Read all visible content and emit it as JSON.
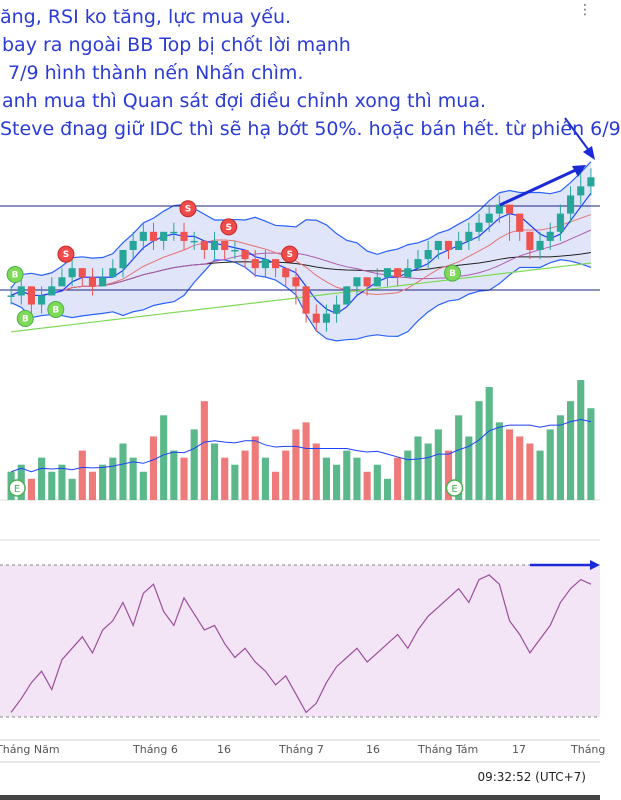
{
  "annotations": [
    "ăng, RSI ko tăng, lực mua yếu.",
    "bay ra ngoài BB Top bị chốt lời mạnh",
    "7/9 hình thành nến Nhấn chìm.",
    "anh mua thì Quan sát đợi điều chỉnh xong thì mua.",
    "Steve đnag giữ IDC thì sẽ hạ bớt 50%. hoặc bán hết. từ phiên 6/9"
  ],
  "timestamp": "09:32:52 (UTC+7)",
  "menu_icon": "ellipsis-vertical-icon",
  "colors": {
    "up": "#26a69a",
    "down": "#ef5350",
    "bb_band": "#2962ff",
    "bb_fill": "#d7dcf7",
    "rsi_line": "#9c4f9c",
    "rsi_fill": "#f3e5f5",
    "annotation": "#2a3bd6"
  },
  "chart_data": {
    "type": "candlestick",
    "x_ticks": [
      "Tháng Năm",
      "Tháng 6",
      "16",
      "Tháng 7",
      "16",
      "Tháng Tám",
      "17",
      "Tháng"
    ],
    "signal_markers": [
      {
        "text": "B",
        "kind": "buy"
      },
      {
        "text": "B",
        "kind": "buy"
      },
      {
        "text": "B",
        "kind": "buy"
      },
      {
        "text": "S",
        "kind": "sell"
      },
      {
        "text": "S",
        "kind": "sell"
      },
      {
        "text": "S",
        "kind": "sell"
      },
      {
        "text": "S",
        "kind": "sell"
      },
      {
        "text": "B",
        "kind": "buy"
      }
    ],
    "volume_badges": [
      "E",
      "E"
    ],
    "candles": [
      [
        30,
        30,
        31,
        29
      ],
      [
        30,
        31,
        32,
        29
      ],
      [
        31,
        29,
        31,
        28
      ],
      [
        29,
        30,
        31,
        28
      ],
      [
        30,
        31,
        32,
        30
      ],
      [
        31,
        32,
        33,
        31
      ],
      [
        32,
        33,
        34,
        31
      ],
      [
        33,
        32,
        33,
        31
      ],
      [
        32,
        31,
        33,
        30
      ],
      [
        31,
        32,
        33,
        31
      ],
      [
        32,
        33,
        34,
        32
      ],
      [
        33,
        35,
        35,
        32
      ],
      [
        35,
        36,
        37,
        34
      ],
      [
        36,
        37,
        38,
        35
      ],
      [
        37,
        36,
        38,
        35
      ],
      [
        36,
        37,
        37,
        35
      ],
      [
        37,
        37,
        38,
        36
      ],
      [
        37,
        36,
        38,
        35
      ],
      [
        36,
        36,
        37,
        35
      ],
      [
        36,
        35,
        36,
        34
      ],
      [
        35,
        36,
        37,
        34
      ],
      [
        36,
        35,
        36,
        34
      ],
      [
        35,
        35,
        36,
        34
      ],
      [
        35,
        34,
        35,
        33
      ],
      [
        34,
        33,
        35,
        32
      ],
      [
        33,
        34,
        35,
        32
      ],
      [
        34,
        33,
        34,
        32
      ],
      [
        33,
        32,
        33,
        31
      ],
      [
        32,
        31,
        33,
        29
      ],
      [
        31,
        28,
        31,
        27
      ],
      [
        28,
        27,
        29,
        26
      ],
      [
        27,
        28,
        29,
        26
      ],
      [
        28,
        29,
        30,
        27
      ],
      [
        29,
        31,
        31,
        29
      ],
      [
        31,
        32,
        32,
        30
      ],
      [
        32,
        31,
        32,
        30
      ],
      [
        31,
        32,
        33,
        31
      ],
      [
        32,
        33,
        33,
        31
      ],
      [
        33,
        32,
        33,
        31
      ],
      [
        32,
        33,
        34,
        32
      ],
      [
        33,
        34,
        35,
        33
      ],
      [
        34,
        35,
        36,
        33
      ],
      [
        35,
        36,
        36,
        34
      ],
      [
        36,
        35,
        36,
        34
      ],
      [
        35,
        36,
        37,
        35
      ],
      [
        36,
        37,
        38,
        35
      ],
      [
        37,
        38,
        39,
        36
      ],
      [
        38,
        39,
        40,
        37
      ],
      [
        39,
        40,
        41,
        38
      ],
      [
        40,
        39,
        40,
        36
      ],
      [
        39,
        37,
        39,
        36
      ],
      [
        37,
        35,
        37,
        34
      ],
      [
        35,
        36,
        37,
        34
      ],
      [
        36,
        37,
        38,
        35
      ],
      [
        37,
        39,
        40,
        36
      ],
      [
        39,
        41,
        42,
        38
      ],
      [
        41,
        42,
        44,
        40
      ],
      [
        42,
        43,
        44,
        41
      ]
    ],
    "volume": [
      4,
      5,
      3,
      6,
      4,
      5,
      3,
      7,
      4,
      5,
      6,
      8,
      6,
      4,
      9,
      12,
      7,
      6,
      10,
      14,
      8,
      6,
      5,
      7,
      9,
      6,
      4,
      7,
      10,
      11,
      8,
      6,
      5,
      7,
      6,
      4,
      5,
      3,
      6,
      7,
      9,
      8,
      10,
      7,
      12,
      9,
      14,
      16,
      11,
      10,
      9,
      8,
      7,
      10,
      12,
      14,
      17,
      13
    ],
    "rsi": [
      22,
      28,
      35,
      40,
      32,
      45,
      50,
      55,
      48,
      58,
      62,
      70,
      60,
      74,
      78,
      66,
      60,
      72,
      65,
      58,
      60,
      52,
      46,
      50,
      44,
      40,
      34,
      38,
      30,
      22,
      26,
      35,
      42,
      46,
      50,
      44,
      48,
      52,
      56,
      50,
      58,
      64,
      68,
      72,
      76,
      70,
      80,
      82,
      78,
      62,
      56,
      48,
      54,
      60,
      70,
      76,
      80,
      78
    ],
    "rsi_range": [
      0,
      100
    ],
    "rsi_bands": [
      30,
      70
    ]
  }
}
